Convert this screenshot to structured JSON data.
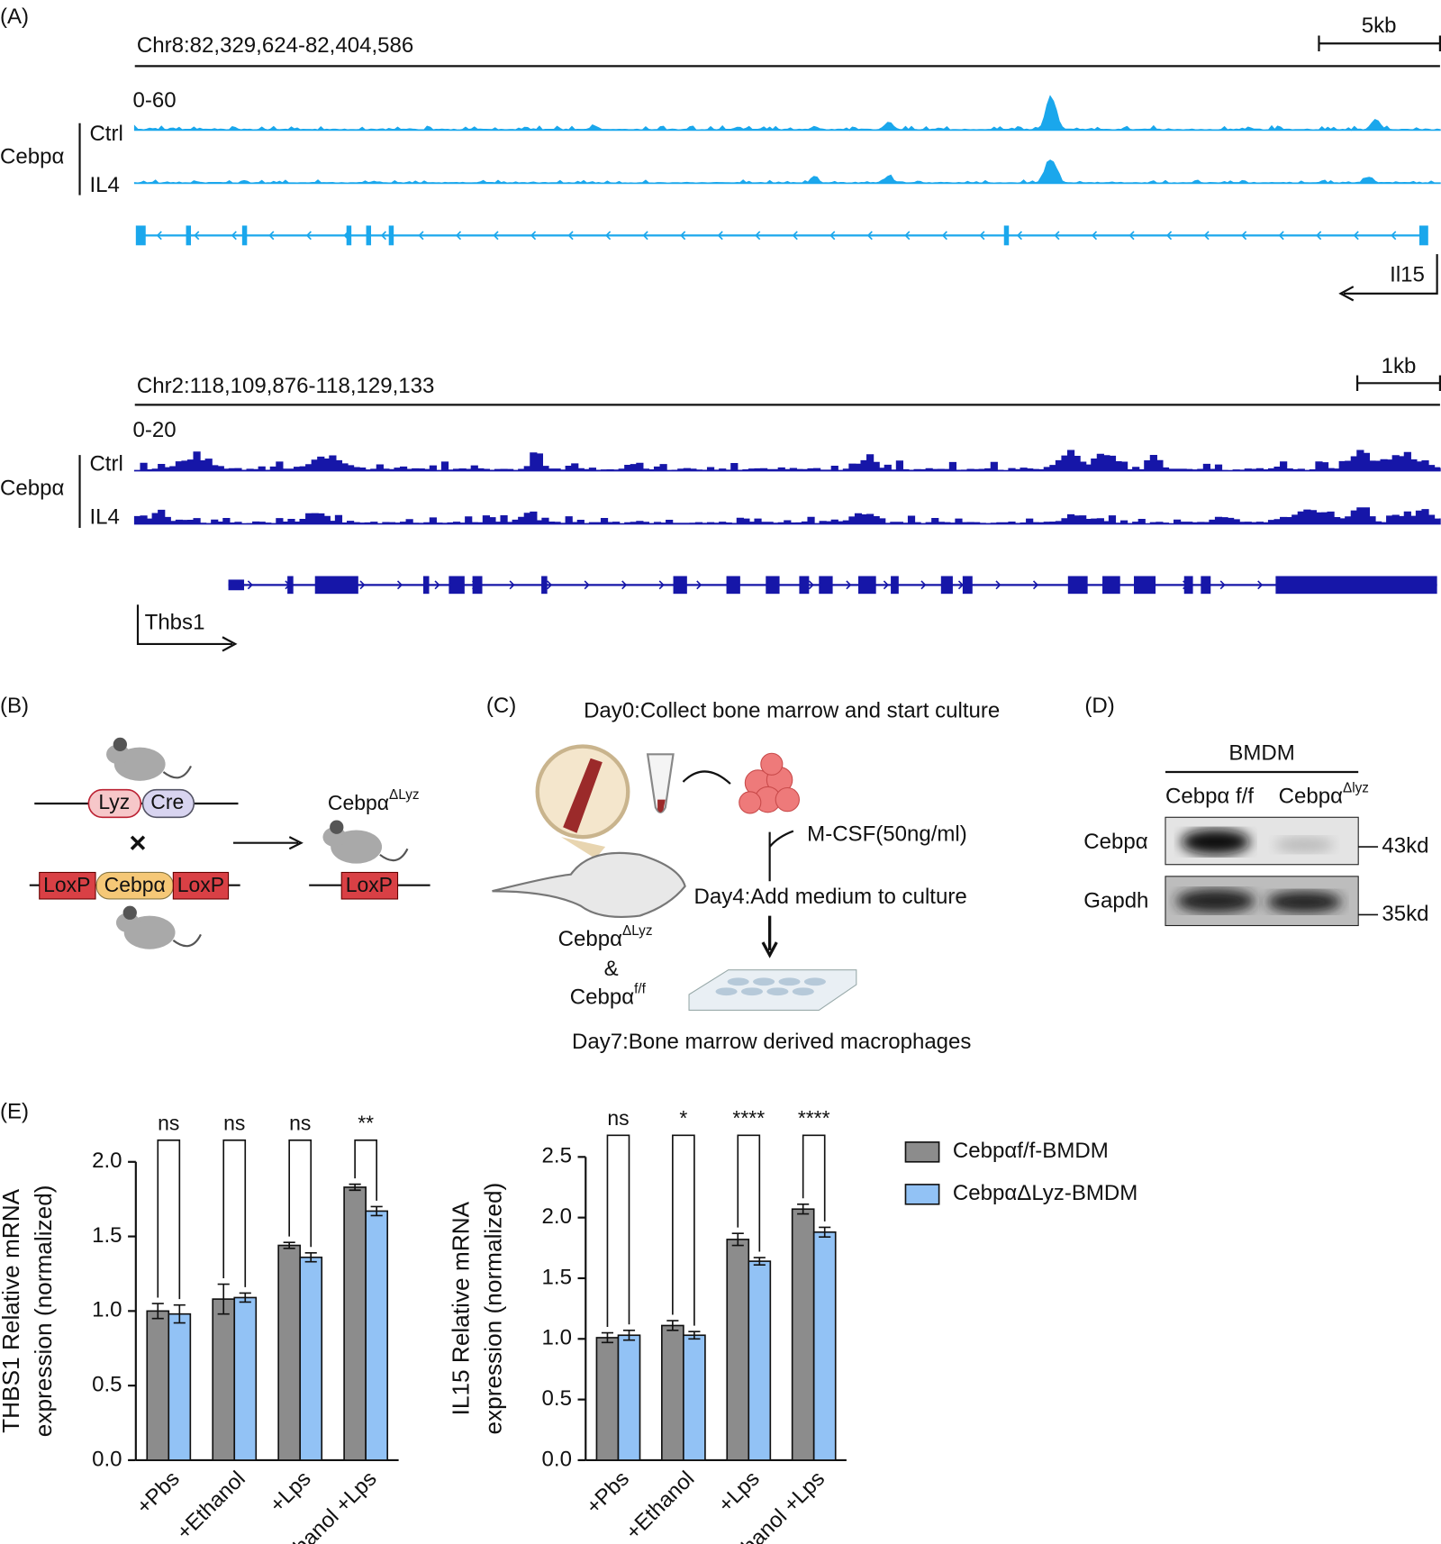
{
  "panel_a": {
    "label": "(A)",
    "tracks": [
      {
        "region": "Chr8:82,329,624-82,404,586",
        "scale": "5kb",
        "range": "0-60",
        "factor": "Cebpα",
        "ctrl": "Ctrl",
        "treated": "IL4",
        "gene": "Il15"
      },
      {
        "region": "Chr2:118,109,876-118,129,133",
        "scale": "1kb",
        "range": "0-20",
        "factor": "Cebpα",
        "ctrl": "Ctrl",
        "treated": "IL4",
        "gene": "Thbs1"
      }
    ]
  },
  "panel_b": {
    "label": "(B)",
    "lyz": "Lyz",
    "cre": "Cre",
    "cross": "×",
    "loxp_left": "LoxP",
    "gene": "Cebpα",
    "loxp_right": "LoxP",
    "result": {
      "text": "Cebpα",
      "sup": "ΔLyz"
    },
    "result_loxp": "LoxP"
  },
  "panel_c": {
    "label": "(C)",
    "day0": "Day0:Collect bone marrow and start culture",
    "mcsf": "M-CSF(50ng/ml)",
    "day4": "Day4:Add medium to culture",
    "mouse_ko": {
      "text": "Cebpα",
      "sup": "ΔLyz"
    },
    "and": "&",
    "mouse_ff": {
      "text": "Cebpα",
      "sup": "f/f"
    },
    "day7": "Day7:Bone marrow derived macrophages"
  },
  "panel_d": {
    "label": "(D)",
    "group": "BMDM",
    "lane1": "Cebpα f/f",
    "lane2": {
      "text": "Cebpα",
      "sup": "Δlyz"
    },
    "row1": "Cebpα",
    "row2": "Gapdh",
    "size1": "43kd",
    "size2": "35kd"
  },
  "panel_e": {
    "label": "(E)"
  },
  "chart_data": [
    {
      "type": "bar",
      "ylabel": [
        "THBS1 Relative mRNA",
        "expression (normalized)"
      ],
      "categories": [
        "+Pbs",
        "+Ethanol",
        "+Lps",
        "+Ethanol +Lps"
      ],
      "series": [
        {
          "name": "Cebpαf/f-BMDM",
          "color": "#8c8c8c",
          "values": [
            1.0,
            1.08,
            1.44,
            1.83
          ],
          "errors": [
            0.05,
            0.1,
            0.02,
            0.02
          ]
        },
        {
          "name": "CebpαΔLyz-BMDM",
          "color": "#92c2f5",
          "values": [
            0.98,
            1.09,
            1.36,
            1.67
          ],
          "errors": [
            0.06,
            0.03,
            0.03,
            0.03
          ]
        }
      ],
      "significance": [
        "ns",
        "ns",
        "ns",
        "**"
      ],
      "ylim": [
        0,
        2.0
      ],
      "yticks": [
        {
          "value": 0,
          "label": "0.0"
        },
        0.5,
        {
          "value": 1,
          "label": "1.0"
        },
        1.5,
        {
          "value": 2,
          "label": "2.0"
        }
      ]
    },
    {
      "type": "bar",
      "ylabel": [
        "IL15 Relative mRNA",
        "expression (normalized)"
      ],
      "categories": [
        "+Pbs",
        "+Ethanol",
        "+Lps",
        "+Ethanol +Lps"
      ],
      "series": [
        {
          "color": "#8c8c8c",
          "values": [
            1.01,
            1.11,
            1.82,
            2.07
          ],
          "errors": [
            0.04,
            0.04,
            0.05,
            0.04
          ]
        },
        {
          "color": "#92c2f5",
          "values": [
            1.03,
            1.03,
            1.64,
            1.88
          ],
          "errors": [
            0.04,
            0.03,
            0.03,
            0.04
          ]
        }
      ],
      "significance": [
        "ns",
        "*",
        "****",
        "****"
      ],
      "ylim": [
        0,
        2.5
      ],
      "yticks": [
        {
          "value": 0,
          "label": "0.0"
        },
        0.5,
        {
          "value": 1,
          "label": "1.0"
        },
        1.5,
        {
          "value": 2,
          "label": "2.0"
        },
        2.5
      ]
    }
  ]
}
